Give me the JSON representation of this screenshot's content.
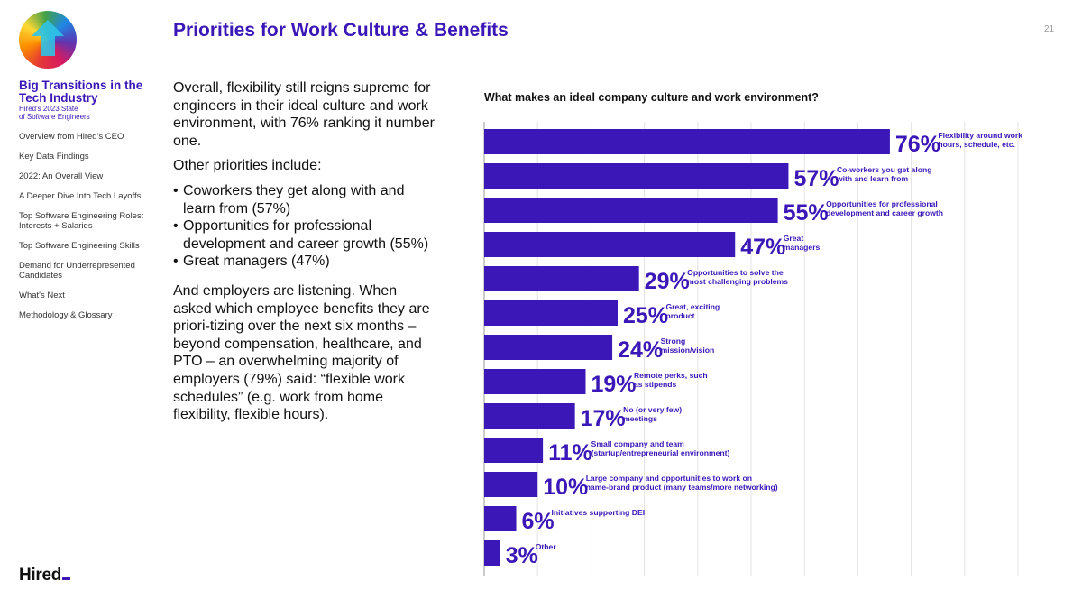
{
  "sidebar": {
    "report_title": "Big Transitions in the Tech Industry",
    "report_subtitle_1": "Hired's 2023 State",
    "report_subtitle_2": "of Software Engineers",
    "nav_items": [
      "Overview from Hired's CEO",
      "Key Data Findings",
      "2022: An Overall View",
      "A Deeper Dive Into Tech Layoffs",
      "Top Software Engineering Roles: Interests + Salaries",
      "Top Software Engineering Skills",
      "Demand for Underrepresented Candidates",
      "What's Next",
      "Methodology & Glossary"
    ],
    "brand": "Hired"
  },
  "header": {
    "title": "Priorities for Work Culture & Benefits",
    "page_number": "21"
  },
  "body": {
    "para1": "Overall, flexibility still reigns supreme for engineers in their ideal culture and work environment, with 76% ranking it number one.",
    "para2": "Other priorities include:",
    "bullets": [
      "Coworkers they get along with and learn from (57%)",
      "Opportunities for professional development and career growth (55%)",
      "Great managers (47%)"
    ],
    "para3": "And employers are listening. When asked which employee benefits they are priori-tizing over the next six months – beyond compensation, healthcare, and PTO – an overwhelming majority of employers (79%) said: “flexible work schedules” (e.g. work from home flexibility, flexible hours)."
  },
  "colors": {
    "accent": "#3b17b8",
    "bar": "#3b17b8",
    "grid": "#e3e3e3"
  },
  "chart_data": {
    "type": "bar",
    "orientation": "horizontal",
    "title": "What makes an ideal company culture and work environment?",
    "xlim": [
      0,
      100
    ],
    "grid": true,
    "categories": [
      [
        "Flexibility around work",
        "hours, schedule, etc."
      ],
      [
        "Co-workers you get along",
        "with and learn from"
      ],
      [
        "Opportunities for professional",
        "development and career growth"
      ],
      [
        "Great",
        "managers"
      ],
      [
        "Opportunities to solve the",
        "most challenging problems"
      ],
      [
        "Great, exciting",
        "product"
      ],
      [
        "Strong",
        "mission/vision"
      ],
      [
        "Remote perks, such",
        "as stipends"
      ],
      [
        "No (or very few)",
        "meetings"
      ],
      [
        "Small company and team",
        "(startup/entrepreneurial environment)"
      ],
      [
        "Large company and opportunities to work on",
        "name-brand product (many teams/more networking)"
      ],
      [
        "Initiatives supporting DEI"
      ],
      [
        "Other"
      ]
    ],
    "values": [
      76,
      57,
      55,
      47,
      29,
      25,
      24,
      19,
      17,
      11,
      10,
      6,
      3
    ],
    "value_labels": [
      "76%",
      "57%",
      "55%",
      "47%",
      "29%",
      "25%",
      "24%",
      "19%",
      "17%",
      "11%",
      "10%",
      "6%",
      "3%"
    ]
  }
}
